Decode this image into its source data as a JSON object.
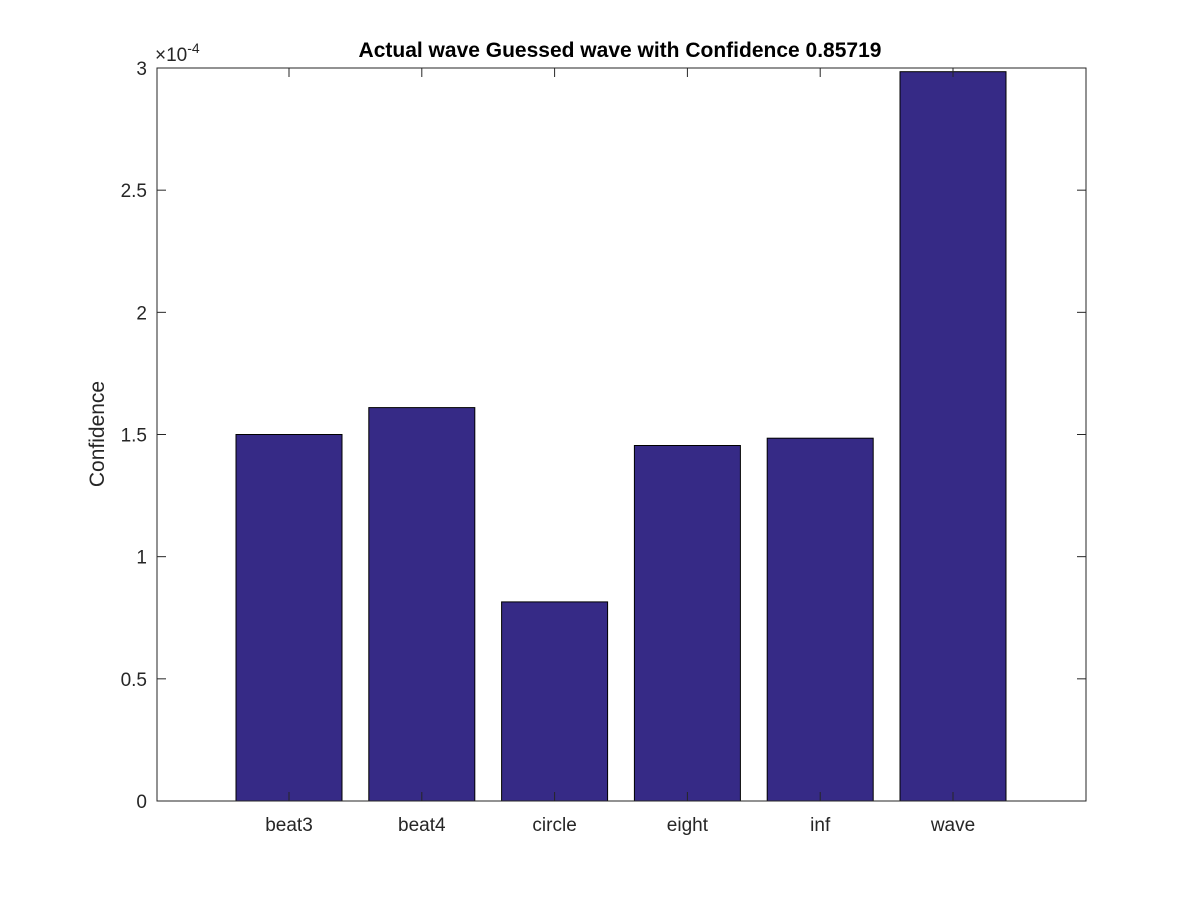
{
  "chart_data": {
    "type": "bar",
    "title": "Actual wave Guessed wave with Confidence 0.85719",
    "xlabel": "",
    "ylabel": "Confidence",
    "categories": [
      "beat3",
      "beat4",
      "circle",
      "eight",
      "inf",
      "wave"
    ],
    "values": [
      0.00015,
      0.000161,
      8.15e-05,
      0.0001455,
      0.0001485,
      0.0002985
    ],
    "ylim": [
      0,
      0.0003
    ],
    "yticks": [
      0,
      5e-05,
      0.0001,
      0.00015,
      0.0002,
      0.00025,
      0.0003
    ],
    "ytick_labels": [
      "0",
      "0.5",
      "1",
      "1.5",
      "2",
      "2.5",
      "3"
    ],
    "y_exponent_base": "×10",
    "y_exponent_power": "-4",
    "grid": false,
    "legend": "none",
    "bar_color": "#362a86"
  }
}
